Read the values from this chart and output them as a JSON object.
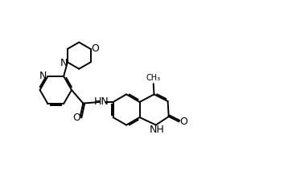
{
  "background": "#ffffff",
  "line_color": "#000000",
  "lw": 1.4,
  "fs": 8.5,
  "xlim": [
    0,
    10
  ],
  "ylim": [
    0,
    7
  ]
}
